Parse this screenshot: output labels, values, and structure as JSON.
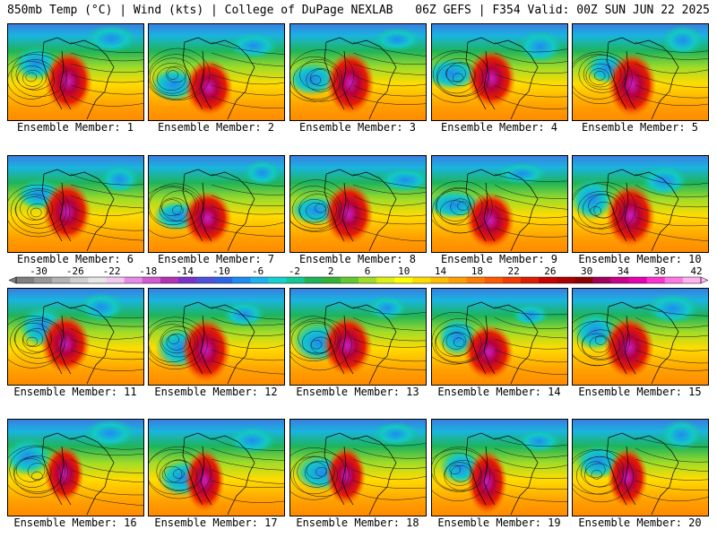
{
  "header": {
    "left": "850mb Temp (°C) | Wind (kts) | College of DuPage NEXLAB",
    "right": "06Z GEFS | F354 Valid: 00Z SUN JUN 22 2025"
  },
  "panels": [
    {
      "label": "Ensemble Member: 1"
    },
    {
      "label": "Ensemble Member: 2"
    },
    {
      "label": "Ensemble Member: 3"
    },
    {
      "label": "Ensemble Member: 4"
    },
    {
      "label": "Ensemble Member: 5"
    },
    {
      "label": "Ensemble Member: 6"
    },
    {
      "label": "Ensemble Member: 7"
    },
    {
      "label": "Ensemble Member: 8"
    },
    {
      "label": "Ensemble Member: 9"
    },
    {
      "label": "Ensemble Member: 10"
    },
    {
      "label": "Ensemble Member: 11"
    },
    {
      "label": "Ensemble Member: 12"
    },
    {
      "label": "Ensemble Member: 13"
    },
    {
      "label": "Ensemble Member: 14"
    },
    {
      "label": "Ensemble Member: 15"
    },
    {
      "label": "Ensemble Member: 16"
    },
    {
      "label": "Ensemble Member: 17"
    },
    {
      "label": "Ensemble Member: 18"
    },
    {
      "label": "Ensemble Member: 19"
    },
    {
      "label": "Ensemble Member: 20"
    }
  ],
  "colorbar": {
    "tick_labels": [
      "-30",
      "-26",
      "-22",
      "-18",
      "-14",
      "-10",
      "-6",
      "-2",
      "2",
      "6",
      "10",
      "14",
      "18",
      "22",
      "26",
      "30",
      "34",
      "38",
      "42"
    ],
    "colors": [
      "#7f7f7f",
      "#989898",
      "#b4b4b4",
      "#cfcfcf",
      "#e6e6e6",
      "#f0c8f0",
      "#e68ce6",
      "#d25ad2",
      "#b432b4",
      "#7a32c8",
      "#5050dc",
      "#2d64e6",
      "#1e8cf0",
      "#19b4f0",
      "#14d2d2",
      "#14c896",
      "#1eb45a",
      "#32b432",
      "#64c832",
      "#a0dc28",
      "#dcf014",
      "#ffff00",
      "#ffdc00",
      "#ffbe00",
      "#ffa000",
      "#ff7d00",
      "#ff5a00",
      "#f03c00",
      "#dc1e00",
      "#c80000",
      "#aa0000",
      "#8c0000",
      "#a0005a",
      "#c8008c",
      "#e600b4",
      "#ff32d2",
      "#ff78e6",
      "#ffb4f0"
    ]
  }
}
